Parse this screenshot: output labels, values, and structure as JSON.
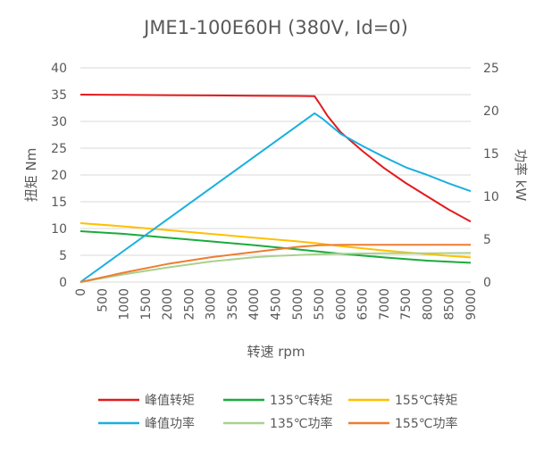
{
  "chart_data": {
    "type": "line",
    "title": "JME1-100E60H (380V, Id=0)",
    "xlabel": "转速 rpm",
    "ylabel_left": "扭矩 Nm",
    "ylabel_right": "功率 kW",
    "xlim": [
      0,
      9000
    ],
    "ylim_left": [
      0,
      40
    ],
    "ylim_right": [
      0,
      25
    ],
    "x_ticks": [
      "0",
      "500",
      "1000",
      "1500",
      "2000",
      "2500",
      "3000",
      "3500",
      "4000",
      "4500",
      "5000",
      "5500",
      "6000",
      "6500",
      "7000",
      "7500",
      "8000",
      "8500",
      "9000"
    ],
    "y_ticks_left": [
      "0",
      "5",
      "10",
      "15",
      "20",
      "25",
      "30",
      "35",
      "40"
    ],
    "y_ticks_right": [
      "0",
      "5",
      "10",
      "15",
      "20",
      "25"
    ],
    "grid": "horizontal",
    "legend": "bottom",
    "series": [
      {
        "name": "峰值转矩",
        "axis": "left",
        "color": "#e31a1c",
        "points": [
          [
            0,
            35
          ],
          [
            1000,
            34.95
          ],
          [
            2000,
            34.9
          ],
          [
            3000,
            34.85
          ],
          [
            4000,
            34.8
          ],
          [
            5000,
            34.75
          ],
          [
            5400,
            34.7
          ],
          [
            5500,
            33.5
          ],
          [
            5700,
            31
          ],
          [
            6000,
            28
          ],
          [
            6500,
            24.5
          ],
          [
            7000,
            21.3
          ],
          [
            7500,
            18.5
          ],
          [
            8000,
            16
          ],
          [
            8500,
            13.5
          ],
          [
            9000,
            11.3
          ]
        ]
      },
      {
        "name": "135℃转矩",
        "axis": "left",
        "color": "#1aab3c",
        "points": [
          [
            0,
            9.5
          ],
          [
            1000,
            9
          ],
          [
            2000,
            8.3
          ],
          [
            3000,
            7.6
          ],
          [
            4000,
            6.9
          ],
          [
            5000,
            6.1
          ],
          [
            6000,
            5.3
          ],
          [
            7000,
            4.6
          ],
          [
            8000,
            4
          ],
          [
            9000,
            3.6
          ]
        ]
      },
      {
        "name": "155℃转矩",
        "axis": "left",
        "color": "#ffc000",
        "points": [
          [
            0,
            11
          ],
          [
            1000,
            10.4
          ],
          [
            2000,
            9.7
          ],
          [
            3000,
            9
          ],
          [
            4000,
            8.3
          ],
          [
            5000,
            7.6
          ],
          [
            5500,
            7.2
          ],
          [
            6000,
            6.7
          ],
          [
            7000,
            5.9
          ],
          [
            8000,
            5.2
          ],
          [
            9000,
            4.6
          ]
        ]
      },
      {
        "name": "峰值功率",
        "axis": "right",
        "color": "#1ab0e0",
        "points": [
          [
            0,
            0
          ],
          [
            5400,
            19.7
          ],
          [
            5600,
            19
          ],
          [
            6000,
            17.3
          ],
          [
            6500,
            15.9
          ],
          [
            7000,
            14.6
          ],
          [
            7500,
            13.4
          ],
          [
            8000,
            12.5
          ],
          [
            8500,
            11.5
          ],
          [
            9000,
            10.6
          ]
        ]
      },
      {
        "name": "135℃功率",
        "axis": "right",
        "color": "#a9d18e",
        "points": [
          [
            0,
            0
          ],
          [
            1000,
            0.9
          ],
          [
            2000,
            1.7
          ],
          [
            3000,
            2.4
          ],
          [
            4000,
            2.9
          ],
          [
            4500,
            3.05
          ],
          [
            5000,
            3.15
          ],
          [
            5500,
            3.25
          ],
          [
            6000,
            3.3
          ],
          [
            7000,
            3.35
          ],
          [
            8000,
            3.35
          ],
          [
            9000,
            3.4
          ]
        ]
      },
      {
        "name": "155℃功率",
        "axis": "right",
        "color": "#ed7d31",
        "points": [
          [
            0,
            0
          ],
          [
            1000,
            1.1
          ],
          [
            2000,
            2.1
          ],
          [
            3000,
            2.9
          ],
          [
            4000,
            3.5
          ],
          [
            5000,
            4.1
          ],
          [
            5500,
            4.3
          ],
          [
            6000,
            4.35
          ],
          [
            7000,
            4.35
          ],
          [
            8000,
            4.35
          ],
          [
            9000,
            4.35
          ]
        ]
      }
    ]
  }
}
